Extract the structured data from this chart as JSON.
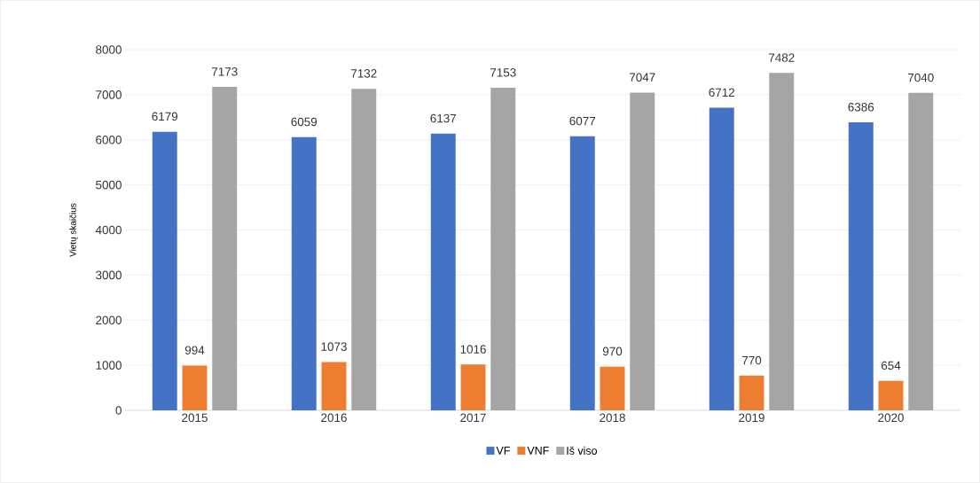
{
  "chart_data": {
    "type": "bar",
    "ylabel": "Vietų skaičius",
    "categories": [
      "2015",
      "2016",
      "2017",
      "2018",
      "2019",
      "2020"
    ],
    "series": [
      {
        "name": "VF",
        "color": "#4472c4",
        "values": [
          6179,
          6059,
          6137,
          6077,
          6712,
          6386
        ]
      },
      {
        "name": "VNF",
        "color": "#ed7d31",
        "values": [
          994,
          1073,
          1016,
          970,
          770,
          654
        ]
      },
      {
        "name": "Iš viso",
        "color": "#a5a5a5",
        "values": [
          7173,
          7132,
          7153,
          7047,
          7482,
          7040
        ]
      }
    ],
    "ylim": [
      0,
      8000
    ],
    "yticks": [
      0,
      1000,
      2000,
      3000,
      4000,
      5000,
      6000,
      7000,
      8000
    ],
    "grid": "y",
    "legend": "bottom",
    "data_labels": true
  }
}
